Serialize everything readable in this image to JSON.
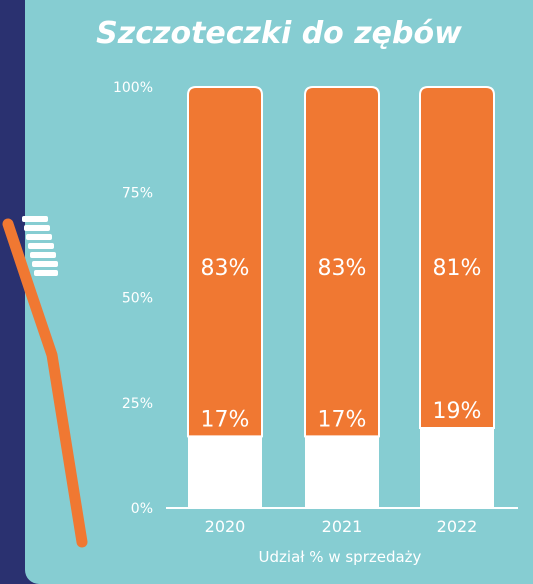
{
  "header": {
    "title": "Szczoteczki do zębów"
  },
  "chart_data": {
    "type": "bar",
    "stacked": true,
    "title": "Szczoteczki do zębów",
    "xlabel": "Udział % w sprzedaży",
    "ylabel": "",
    "ylim": [
      0,
      100
    ],
    "yticks": [
      "0%",
      "25%",
      "50%",
      "75%",
      "100%"
    ],
    "categories": [
      "2020",
      "2021",
      "2022"
    ],
    "series": [
      {
        "values": [
          17,
          17,
          19
        ],
        "labels": [
          "17%",
          "17%",
          "19%"
        ],
        "color": "#ffffff"
      },
      {
        "values": [
          83,
          83,
          81
        ],
        "labels": [
          "83%",
          "83%",
          "81%"
        ],
        "color": "#f07832"
      }
    ],
    "grid": false,
    "legend": "none"
  },
  "colors": {
    "background": "#2a3170",
    "panel": "#86cdd2",
    "accent": "#f07832",
    "text": "#ffffff"
  },
  "icons": {
    "decoration": "toothbrush-icon"
  }
}
